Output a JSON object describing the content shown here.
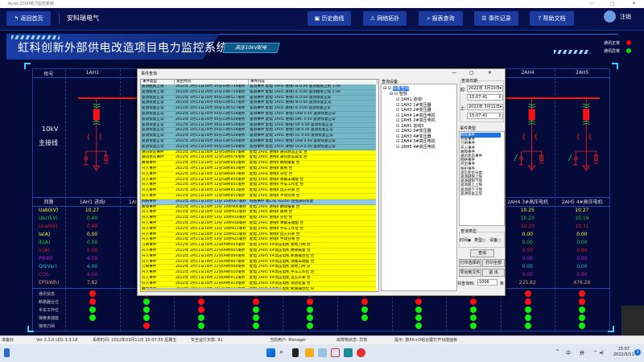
{
  "window": {
    "title": "Acrel-2000电力监控系统",
    "controls": [
      "—",
      "▢",
      "✕"
    ]
  },
  "nav": {
    "home": "返回首页",
    "brand": "安科瑞电气",
    "buttons": [
      "历史曲线",
      "网络拓扑",
      "报表查询",
      "事件记录",
      "帮助文档"
    ],
    "logout": "注销"
  },
  "banner": {
    "title": "虹科创新外部供电改造项目电力监控系统",
    "tag": "高压10kV配电",
    "legend": [
      {
        "label": "通讯正常",
        "color": "#ff0000"
      },
      {
        "label": "通讯异常",
        "color": "#00e000"
      }
    ]
  },
  "diagram": {
    "cabinet_header": "柜号",
    "cabinets": [
      "1AH1",
      "1AH2",
      "1AH3",
      "1AH4",
      "1AH5",
      "2AH1",
      "2AH2",
      "2AH3",
      "2AH4",
      "2AH5"
    ],
    "bus_label": "10kV",
    "bus_label2": "主接线",
    "loop_header": "回路",
    "loops": [
      "1AH1 进线I",
      "1AH2 1#变压器",
      "1AH3 2#变压器",
      "1AH4 1#高压电机",
      "1AH5 2#高压电机",
      "2AH1 进线II",
      "2AH2 3#变压器",
      "2AH3 4#变压器",
      "2AH4 3#高压电机",
      "2AH5 4#高压电机"
    ]
  },
  "measurements": [
    {
      "label": "Uab(kV)",
      "color": "#ffff40",
      "values": [
        "10.27",
        null,
        null,
        null,
        null,
        null,
        null,
        null,
        "10.25",
        "10.27"
      ]
    },
    {
      "label": "Ubc(kV)",
      "color": "#20d040",
      "values": [
        "0.40",
        null,
        null,
        null,
        null,
        null,
        null,
        null,
        "10.20",
        "10.19"
      ]
    },
    {
      "label": "Uca(kV)",
      "color": "#e02020",
      "values": [
        "0.40",
        null,
        null,
        null,
        null,
        null,
        null,
        null,
        "10.20",
        "10.31"
      ]
    },
    {
      "label": "Ia(A)",
      "color": "#ffff40",
      "values": [
        "0.00",
        null,
        null,
        null,
        null,
        null,
        null,
        null,
        "0.00",
        "0.00"
      ]
    },
    {
      "label": "Ib(A)",
      "color": "#20d040",
      "values": [
        "0.00",
        null,
        null,
        null,
        null,
        null,
        null,
        null,
        "0.00",
        "0.00"
      ]
    },
    {
      "label": "Ic(A)",
      "color": "#e02020",
      "values": [
        "0.00",
        null,
        null,
        null,
        null,
        null,
        null,
        null,
        "0.00",
        "0.00"
      ]
    },
    {
      "label": "P(kW)",
      "color": "#c020e0",
      "values": [
        "4.00",
        null,
        null,
        null,
        null,
        null,
        null,
        null,
        "0.00",
        "0.00"
      ]
    },
    {
      "label": "Q(kVar)",
      "color": "#20c0e0",
      "values": [
        "4.00",
        null,
        null,
        null,
        null,
        null,
        null,
        null,
        "0.00",
        "0.00"
      ]
    },
    {
      "label": "COS",
      "color": "#c02090",
      "values": [
        "4.00",
        null,
        null,
        null,
        null,
        null,
        null,
        null,
        "0.00",
        "0.00"
      ]
    },
    {
      "label": "EP(kWh)",
      "color": "#e0a070",
      "values": [
        "7.82",
        null,
        null,
        null,
        null,
        null,
        null,
        null,
        "225.82",
        "476.26"
      ]
    }
  ],
  "status_rows": [
    {
      "label": "通讯状态",
      "states": [
        "R",
        "R",
        "R",
        "R",
        "R",
        "R",
        "R",
        "R",
        "R",
        "R"
      ]
    },
    {
      "label": "断路器合位",
      "states": [
        "R",
        "G",
        "R",
        "R",
        "R",
        "R",
        "R",
        "R",
        "R",
        "R"
      ]
    },
    {
      "label": "手车工作位",
      "states": [
        "G",
        "G",
        "R",
        "G",
        "G",
        "G",
        "G",
        "G",
        "G",
        "G"
      ]
    },
    {
      "label": "弹簧未储能",
      "states": [
        "G",
        "G",
        "G",
        "G",
        "G",
        "G",
        "G",
        "G",
        "G",
        "G"
      ]
    },
    {
      "label": "接地刀闸",
      "states": [
        "",
        "R",
        "G",
        "G",
        "G",
        "",
        "G",
        "G",
        "G",
        "G"
      ]
    }
  ],
  "colors": {
    "R": "#ff1010",
    "G": "#10ee10"
  },
  "dialog": {
    "title": "事件查询",
    "columns": [
      "事件类型",
      "发生时间",
      "事件内容"
    ],
    "rows": [
      [
        "遥测越限上限",
        "2022年 3月11日14时 35分33秒734毫秒",
        "遥测事件 配电 1AH1 进线I Ia 0.00 遥测越限上限 1.00",
        "teal"
      ],
      [
        "遥测越限上限",
        "2022年 3月11日14时 35分33秒734毫秒",
        "遥测事件 配电 1AH1 进线I Ic 0.00 遥测越限上限 1.00",
        "teal"
      ],
      [
        "遥测恢复正常",
        "2022年 3月11日14时 40分33秒527毫秒",
        "遥测事件 配电 1AH1 进线I Ia 0.00 遥测恢复正常",
        "teal"
      ],
      [
        "遥测恢复正常",
        "2022年 3月11日14时 40分33秒527毫秒",
        "遥测事件 配电 1AH1 进线I Ib 0.00 遥测恢复正常",
        "teal"
      ],
      [
        "遥测恢复正常",
        "2022年 3月11日14时 40分33秒527毫秒",
        "遥测事件 配电 1AH1 进线I Ic 0.00 遥测恢复正常",
        "teal"
      ],
      [
        "遥测恢复正常",
        "2022年 3月11日14时 40分33秒528毫秒",
        "遥测事件 配电 1AH1 进线I UAB 0.40 遥测恢复正常",
        "teal"
      ],
      [
        "遥测恢复正常",
        "2022年 3月11日14时 40分33秒528毫秒",
        "遥测事件 配电 1AH1 进线I UBC 0.40 遥测恢复正常",
        "teal"
      ],
      [
        "遥测恢复正常",
        "2022年 3月11日14时 40分33秒528毫秒",
        "遥测事件 配电 1AH1 进线I UA 0.00 遥测恢复正常",
        "teal"
      ],
      [
        "遥测恢复正常",
        "2022年 3月11日14时 40分33秒528毫秒",
        "遥测事件 配电 1AH1 进线I UB 0.00 遥测恢复正常",
        "teal"
      ],
      [
        "遥测恢复正常",
        "2022年 3月11日14时 40分33秒528毫秒",
        "遥测事件 配电 1AH1 进线I UC 0.00 遥测恢复正常",
        "teal"
      ],
      [
        "遥测恢复正常",
        "2022年 3月11日14时 40分33秒529毫秒",
        "遥测事件 配电 1AH1 进线I UAB 0.40 遥测恢复正常",
        "teal"
      ],
      [
        "遥测恢复正常",
        "2022年 3月11日14时 40分33秒529毫秒",
        "遥测事件 配电 1AH1 进线I UCA 0.40 遥测恢复正常",
        "teal"
      ],
      [
        "通讯状态事件",
        "2022年 3月11日14时 12分54秒667毫秒",
        "配电 2AH1 进线II 通讯状态正常 合",
        "yellow"
      ],
      [
        "通讯状态事件",
        "2022年 3月11日14时 12分54秒676毫秒",
        "配电 2AH1 进线II 通讯状态异常 合",
        "yellow"
      ],
      [
        "故障事件",
        "2022年 3月11日14时 12分58秒843毫秒",
        "配电 2AH1 进线II 故障报警 合",
        "yellow"
      ],
      [
        "开入事件",
        "2022年 3月11日14时 12分58秒843毫秒",
        "配电 2AH1 进线II 备用 合",
        "yellow"
      ],
      [
        "开入事件",
        "2022年 3月11日14时 12分58秒847毫秒",
        "配电 2AH1 进线II 分位 合",
        "yellow"
      ],
      [
        "开入事件",
        "2022年 3月11日14时 12分58秒850毫秒",
        "配电 2AH1 进线II 弹簧未储能 合",
        "yellow"
      ],
      [
        "开入事件",
        "2022年 3月11日14时 12分58秒851毫秒",
        "配电 2AH1 进线II 手车工作位 合",
        "yellow"
      ],
      [
        "开入事件",
        "2022年 3月11日14时 12分58秒853毫秒",
        "配电 2AH1 进线II 远方开关 合",
        "yellow"
      ],
      [
        "开入事件",
        "2022年 3月11日14时 12分58秒855毫秒",
        "配电 2AH1 进线II 手动分闸 合",
        "yellow"
      ],
      [
        "网络事件",
        "2022年 3月11日14时 13分 10秒667毫秒",
        "网络事件 端口号 Router 连接通讯恢复",
        "blue"
      ],
      [
        "故障事件",
        "2022年 3月11日14时 13分 10秒906毫秒",
        "配电 2AH1 进线II 故障报警 合",
        "yellow"
      ],
      [
        "开入事件",
        "2022年 3月11日14时 13分 10秒912毫秒",
        "配电 2AH1 进线II 备用 合",
        "yellow"
      ],
      [
        "开入事件",
        "2022年 3月11日14时 13分 10秒916毫秒",
        "配电 2AH1 进线II 分位 合",
        "yellow"
      ],
      [
        "开入事件",
        "2022年 3月11日14时 13分 10秒918毫秒",
        "配电 2AH1 进线II 弹簧未储能 合",
        "yellow"
      ],
      [
        "开入事件",
        "2022年 3月11日14时 13分 10秒921毫秒",
        "配电 2AH1 进线II 手车工作位 合",
        "yellow"
      ],
      [
        "开入事件",
        "2022年 3月11日14时 13分 10秒923毫秒",
        "配电 2AH1 进线II 远方开关 合",
        "yellow"
      ],
      [
        "开入事件",
        "2022年 3月11日14时 13分 10秒925毫秒",
        "配电 2AH1 进线II 手动分闸 合",
        "yellow"
      ],
      [
        "刀闸事件",
        "2022年 3月11日14时 22分09秒004毫秒",
        "配电 2AH5 4#高压电机 接地刀闸 合",
        "yellow"
      ],
      [
        "开入事件",
        "2022年 3月11日14时 22分09秒005毫秒",
        "配电 2AH5 4#高压电机 故障报警 合",
        "yellow"
      ],
      [
        "开入事件",
        "2022年 3月11日14时 22分09秒006毫秒",
        "配电 2AH5 4#高压电机 断路器合位 合",
        "yellow"
      ],
      [
        "开入事件",
        "2022年 3月11日14时 22分09秒007毫秒",
        "配电 2AH5 4#高压电机 弹簧未储能 合",
        "yellow"
      ],
      [
        "刀闸事件",
        "2022年 3月11日14时 22分09秒008毫秒",
        "配电 2AH5 4#高压电机 接地刀闸 分",
        "yellow"
      ],
      [
        "开入事件",
        "2022年 3月11日14时 22分09秒010毫秒",
        "配电 2AH5 4#高压电机 手车工作位 合",
        "yellow"
      ],
      [
        "开入事件",
        "2022年 3月11日14时 22分09秒012毫秒",
        "配电 2AH5 4#高压电机 远方开关 合",
        "yellow"
      ],
      [
        "开入事件",
        "2022年 3月11日14时 22分09秒014毫秒",
        "配电 2AH5 4#高压电机 试验位置 合",
        "yellow"
      ],
      [
        "故障事件",
        "2022年 3月11日14时 24分18秒137毫秒",
        "配电 2AH5 4#高压电机 断路器合位 分",
        "yellow"
      ],
      [
        "开入事件",
        "2022年 3月11日14时 24分18秒138毫秒",
        "配电 2AH5 4#高压电机 手车工作位 分",
        "yellow"
      ],
      [
        "开入事件",
        "2022年 3月11日14时 25分42秒071毫秒",
        "配电 2AH5 4#高压电机 弹簧未储能 分",
        "yellow"
      ],
      [
        "遥控事件",
        "2022年 3月11日14时 29分09秒004毫秒",
        "遥控事件 配电 2AH5 4#高压电机 手动分闸 操作",
        "red"
      ],
      [
        "遥控事件",
        "2022年 3月11日14时 29分09秒657毫秒",
        "遥控事件 配电 2AH5 4#高压电机 手动分闸 复归",
        "red"
      ],
      [
        "故障事件",
        "2022年 3月11日14时 29分 58秒545毫秒",
        "配电 2AH5 4#高压电机 断路器合位 合",
        "yellow"
      ],
      [
        "开入事件",
        "2022年 3月11日14时 30分 09秒052毫秒",
        "配电 2AH5 4#高压电机 弹簧未储能 合",
        "yellow"
      ],
      [
        "开入事件",
        "2022年 3月11日14时 30分 11秒003毫秒",
        "配电 2AH5 4#高压电机 远方开关 合",
        "yellow"
      ]
    ],
    "device_group": "查询设备",
    "tree_root": "设备查询",
    "tree_branch": "智部",
    "tree_items": [
      "1AH1 进线I",
      "1AH2 1#变压器",
      "1AH3 2#变压器",
      "1AH4 1#高压电机",
      "1AH5 2#高压电机",
      "2AH1 进线II",
      "2AH2 3#变压器",
      "2AH3 4#变压器",
      "2AH4 3#高压电机",
      "2AH5 4#高压电机"
    ],
    "date_group": "查询日期",
    "from_label": "起:",
    "from_date": "2022年 3月10日",
    "from_time": "15:07:41",
    "to_label": "止:",
    "to_date": "2022年 3月11日",
    "to_time": "15:07:41",
    "event_type_group": "事件类型",
    "event_types": [
      "所有事件",
      "开关事件",
      "刀闸事件",
      "开入事件",
      "故障事件",
      "通讯状态事件",
      "网络事件",
      "开出事件",
      "保护事件",
      "遥信变位分类",
      "遥测越限上限",
      "遥测越限下限",
      "遥测越上上限",
      "遥测越下下限",
      "遥测恢复正常"
    ],
    "query_type_group": "查询类型",
    "query_types": [
      "时间",
      "类型",
      "设备"
    ],
    "query_btn": "查询",
    "print_sel_btn": "打印选择的",
    "print_all_btn": "打印全部",
    "export_btn": "导出到文件",
    "exit_btn": "退 出",
    "count_label": "共查询到:",
    "count": "1006",
    "count_unit": "条"
  },
  "statusbar": {
    "ready": "准备好",
    "version": "Ver 2.3.0 LEG 3.3.18",
    "time": "系统时间: 2022年03月11日  15:07:55  星期五",
    "days": "安全运行天数:  91",
    "user": "当前用户:  Manager",
    "fault": "故障物状态:  异常",
    "hint": "提示: 按Alt+D组合键打开功能面板"
  },
  "taskbar": {
    "ime": "中",
    "ime2": "拼",
    "clock": "15:07",
    "date": "2022/3/11",
    "badge": "3"
  }
}
